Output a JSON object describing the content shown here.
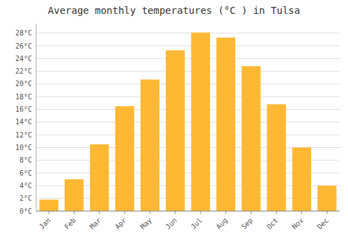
{
  "chart_data": {
    "type": "bar",
    "title": "Average monthly temperatures (°C ) in Tulsa",
    "categories": [
      "Jan",
      "Feb",
      "Mar",
      "Apr",
      "May",
      "Jun",
      "Jul",
      "Aug",
      "Sep",
      "Oct",
      "Nov",
      "Dec"
    ],
    "values": [
      1.8,
      5.0,
      10.5,
      16.5,
      20.7,
      25.3,
      28.1,
      27.3,
      22.8,
      16.8,
      10.0,
      4.0
    ],
    "color": "#FFB833",
    "ylim": [
      0,
      29.5
    ],
    "yticks": [
      {
        "value": 0,
        "label": "0°C"
      },
      {
        "value": 2,
        "label": "2°C"
      },
      {
        "value": 4,
        "label": "4°C"
      },
      {
        "value": 6,
        "label": "6°C"
      },
      {
        "value": 8,
        "label": "8°C"
      },
      {
        "value": 10,
        "label": "10°C"
      },
      {
        "value": 12,
        "label": "12°C"
      },
      {
        "value": 14,
        "label": "14°C"
      },
      {
        "value": 16,
        "label": "16°C"
      },
      {
        "value": 18,
        "label": "18°C"
      },
      {
        "value": 20,
        "label": "20°C"
      },
      {
        "value": 22,
        "label": "22°C"
      },
      {
        "value": 24,
        "label": "24°C"
      },
      {
        "value": 26,
        "label": "26°C"
      },
      {
        "value": 28,
        "label": "28°C"
      }
    ],
    "grid": true
  }
}
